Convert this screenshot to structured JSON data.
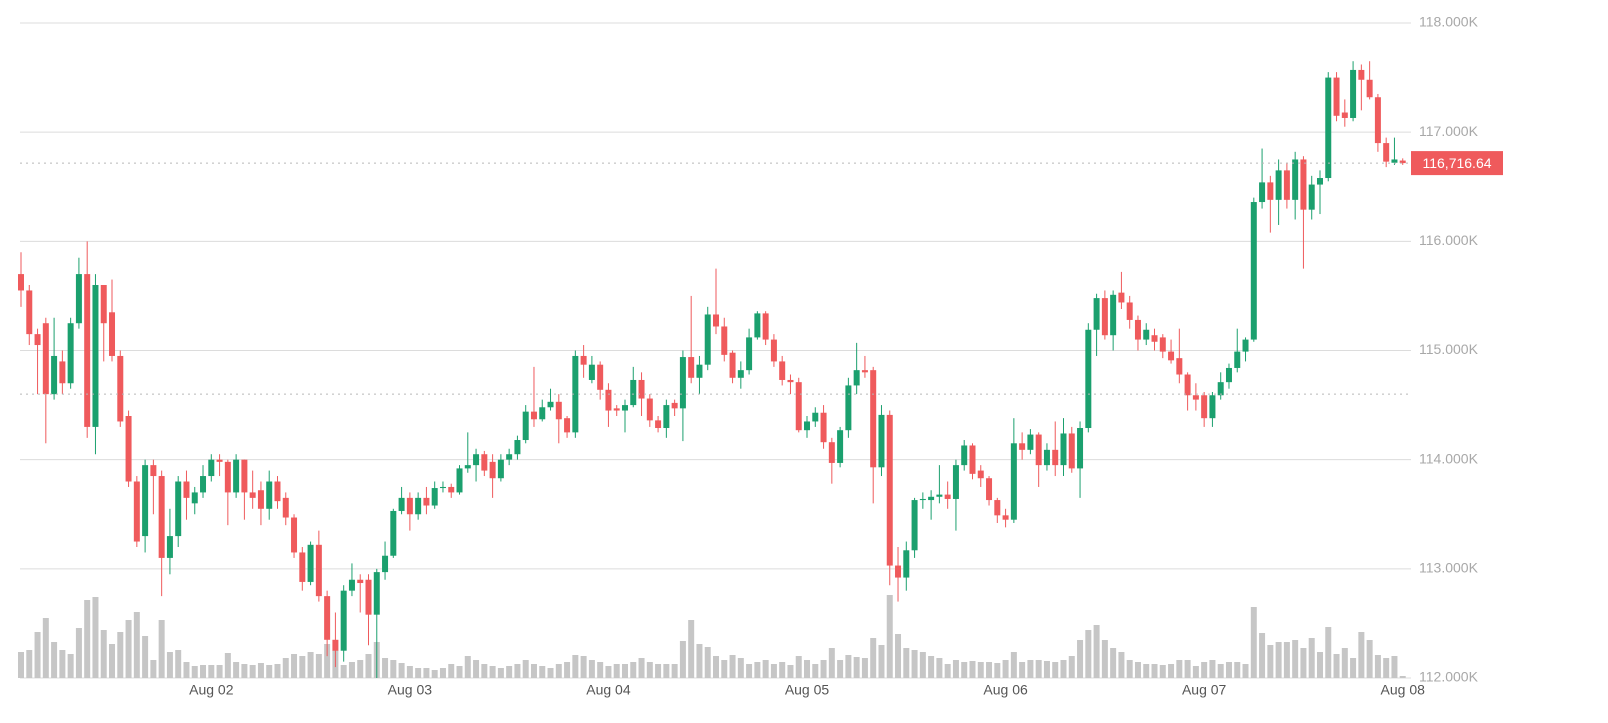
{
  "chart_data": {
    "type": "candlestick",
    "xlim": [
      0,
      168
    ],
    "xticks": [
      {
        "value": 23,
        "label": "Aug 02"
      },
      {
        "value": 47,
        "label": "Aug 03"
      },
      {
        "value": 71,
        "label": "Aug 04"
      },
      {
        "value": 95,
        "label": "Aug 05"
      },
      {
        "value": 119,
        "label": "Aug 06"
      },
      {
        "value": 143,
        "label": "Aug 07"
      },
      {
        "value": 167,
        "label": "Aug 08"
      }
    ],
    "ylim": [
      112000,
      118000
    ],
    "yticks": [
      {
        "value": 112000,
        "label": "112.000K"
      },
      {
        "value": 113000,
        "label": "113.000K"
      },
      {
        "value": 114000,
        "label": "114.000K"
      },
      {
        "value": 115000,
        "label": "115.000K"
      },
      {
        "value": 116000,
        "label": "116.000K"
      },
      {
        "value": 117000,
        "label": "117.000K"
      },
      {
        "value": 118000,
        "label": "118.000K"
      }
    ],
    "grid": true,
    "up_color": "#1ba06e",
    "down_color": "#ef5a5c",
    "volume_color": "#c6c6c6",
    "last_price": {
      "value": 116716.64,
      "label": "116,716.64"
    },
    "reference_line": 114600,
    "candles": {
      "open": [
        115700,
        115550,
        115150,
        115250,
        114600,
        114900,
        114700,
        115250,
        115700,
        114300,
        115600,
        115350,
        114950,
        114400,
        113800,
        113300,
        113950,
        113850,
        113100,
        113300,
        113800,
        113600,
        113700,
        113850,
        114000,
        113980,
        113700,
        114000,
        113700,
        113720,
        113550,
        113800,
        113650,
        113470,
        113150,
        112880,
        113220,
        112750,
        112350,
        112250,
        112800,
        112900,
        112900,
        112580,
        112970,
        113120,
        113530,
        113650,
        113500,
        113650,
        113580,
        113740,
        113750,
        113700,
        113920,
        113950,
        114050,
        113980,
        113830,
        114000,
        114050,
        114180,
        114440,
        114370,
        114480,
        114530,
        114380,
        114250,
        114950,
        114730,
        114870,
        114640,
        114470,
        114450,
        114500,
        114730,
        114560,
        114360,
        114290,
        114520,
        114470,
        114940,
        114750,
        114870,
        115330,
        115220,
        114980,
        114750,
        114820,
        115120,
        115340,
        115100,
        114900,
        114730,
        114710,
        114270,
        114350,
        114430,
        114160,
        113970,
        114270,
        114680,
        114820,
        114820,
        113930,
        114410,
        113030,
        112920,
        113170,
        113630,
        113630,
        113660,
        113680,
        113640,
        113950,
        114130,
        113900,
        113830,
        113630,
        113490,
        113450,
        114150,
        114090,
        114230,
        113950,
        114090,
        113950,
        114240,
        113920,
        114290,
        115190,
        115480,
        115140,
        115530,
        115440,
        115280,
        115100,
        115140,
        115120,
        114990,
        114930,
        114780,
        114590,
        114590,
        114380,
        114590,
        114710,
        114840,
        114990,
        115100,
        116360,
        116540,
        116380,
        116650,
        116380,
        116750,
        116290,
        116520,
        116580,
        117500,
        117180,
        117130,
        117570,
        117480,
        117320,
        116900,
        116720,
        116740
      ],
      "high": [
        115900,
        115600,
        115200,
        115300,
        115300,
        115000,
        115300,
        115850,
        116000,
        115700,
        115600,
        115650,
        115000,
        114450,
        113850,
        114000,
        114000,
        113900,
        113550,
        113850,
        113900,
        113750,
        113950,
        114050,
        114050,
        114000,
        114050,
        114000,
        113900,
        113800,
        113900,
        113850,
        113700,
        113500,
        113200,
        113250,
        113350,
        112800,
        112600,
        112850,
        113050,
        112950,
        112950,
        113000,
        113250,
        113550,
        113750,
        113700,
        113700,
        113750,
        113800,
        113800,
        113780,
        113950,
        114250,
        114100,
        114080,
        114050,
        114050,
        114100,
        114220,
        114500,
        114850,
        114550,
        114650,
        114600,
        114400,
        115000,
        115050,
        114950,
        114900,
        114700,
        114500,
        114550,
        114850,
        114800,
        114600,
        114400,
        114550,
        114550,
        115000,
        115500,
        114950,
        115400,
        115750,
        115300,
        115000,
        114900,
        115200,
        115360,
        115360,
        115150,
        114950,
        114780,
        114750,
        114400,
        114480,
        114500,
        114200,
        114300,
        114750,
        115070,
        114950,
        114850,
        114500,
        114450,
        113200,
        113250,
        113650,
        113700,
        113720,
        113950,
        113800,
        114000,
        114180,
        114150,
        113950,
        113850,
        113650,
        113550,
        114380,
        114250,
        114280,
        114250,
        114150,
        114350,
        114380,
        114300,
        114350,
        115250,
        115520,
        115550,
        115550,
        115720,
        115500,
        115320,
        115250,
        115200,
        115150,
        115100,
        115200,
        114800,
        114700,
        114620,
        114620,
        114800,
        114880,
        115200,
        115120,
        116400,
        116850,
        116600,
        116750,
        116720,
        116820,
        116780,
        116600,
        116650,
        117550,
        117550,
        117300,
        117650,
        117620,
        117650,
        117350,
        116950,
        116950,
        116760
      ],
      "low": [
        115400,
        115050,
        114600,
        114150,
        114550,
        114600,
        114650,
        115200,
        114200,
        114050,
        114900,
        114900,
        114300,
        113750,
        113200,
        113150,
        113500,
        112750,
        112950,
        113200,
        113450,
        113500,
        113650,
        113800,
        113850,
        113400,
        113650,
        113450,
        113550,
        113400,
        113450,
        113550,
        113400,
        113100,
        112800,
        112850,
        112700,
        112200,
        112100,
        112150,
        112750,
        112600,
        112300,
        112000,
        112900,
        113100,
        113500,
        113350,
        113450,
        113500,
        113550,
        113700,
        113650,
        113680,
        113880,
        113800,
        113850,
        113650,
        113800,
        113950,
        114000,
        114150,
        114300,
        114350,
        114450,
        114150,
        114200,
        114200,
        114750,
        114700,
        114550,
        114300,
        114400,
        114250,
        114480,
        114400,
        114300,
        114250,
        114200,
        114400,
        114170,
        114700,
        114600,
        114820,
        115150,
        114900,
        114700,
        114650,
        114780,
        115100,
        115050,
        114850,
        114680,
        114600,
        114250,
        114200,
        114300,
        114100,
        113780,
        113930,
        114200,
        114600,
        114750,
        113600,
        113850,
        112850,
        112700,
        112800,
        113100,
        113550,
        113450,
        113600,
        113550,
        113350,
        113900,
        113820,
        113750,
        113580,
        113420,
        113380,
        113420,
        114000,
        114050,
        113750,
        113900,
        113850,
        113850,
        113880,
        113650,
        114250,
        114950,
        115100,
        115000,
        115380,
        115200,
        115000,
        115050,
        115000,
        114930,
        114880,
        114700,
        114450,
        114450,
        114300,
        114300,
        114550,
        114650,
        114800,
        114900,
        115080,
        116300,
        116080,
        116150,
        116300,
        116200,
        115750,
        116200,
        116250,
        116550,
        117100,
        117050,
        117100,
        117200,
        117300,
        116820,
        116680,
        116700,
        116700
      ],
      "close": [
        115550,
        115150,
        115050,
        114600,
        114950,
        114700,
        115250,
        115700,
        114300,
        115600,
        115250,
        114950,
        114350,
        113800,
        113250,
        113950,
        113850,
        113100,
        113300,
        113800,
        113650,
        113700,
        113850,
        114000,
        113980,
        113700,
        114000,
        113700,
        113650,
        113550,
        113800,
        113620,
        113470,
        113150,
        112880,
        113220,
        112750,
        112350,
        112250,
        112800,
        112900,
        112870,
        112580,
        112970,
        113120,
        113530,
        113650,
        113500,
        113650,
        113580,
        113740,
        113750,
        113700,
        113920,
        113950,
        114050,
        113900,
        113830,
        114000,
        114050,
        114180,
        114440,
        114370,
        114480,
        114530,
        114370,
        114250,
        114950,
        114870,
        114870,
        114640,
        114450,
        114450,
        114500,
        114730,
        114560,
        114360,
        114290,
        114500,
        114470,
        114940,
        114750,
        114870,
        115330,
        115220,
        114960,
        114750,
        114820,
        115120,
        115340,
        115100,
        114900,
        114730,
        114710,
        114270,
        114350,
        114430,
        114160,
        113970,
        114270,
        114680,
        114820,
        114800,
        113930,
        114410,
        113030,
        112920,
        113170,
        113630,
        113640,
        113660,
        113680,
        113640,
        113950,
        114130,
        113870,
        113830,
        113630,
        113490,
        113450,
        114150,
        114090,
        114230,
        113950,
        114090,
        113950,
        114240,
        113920,
        114290,
        115190,
        115480,
        115140,
        115510,
        115440,
        115280,
        115100,
        115190,
        115080,
        114990,
        114910,
        114780,
        114590,
        114550,
        114380,
        114590,
        114710,
        114840,
        114990,
        115100,
        116360,
        116540,
        116380,
        116650,
        116380,
        116750,
        116290,
        116520,
        116580,
        117500,
        117150,
        117130,
        117570,
        117480,
        117320,
        116900,
        116730,
        116750,
        116716.64
      ],
      "volume": [
        26,
        28,
        46,
        60,
        36,
        28,
        24,
        50,
        78,
        81,
        48,
        34,
        46,
        58,
        66,
        42,
        18,
        58,
        26,
        28,
        16,
        12,
        13,
        13,
        13,
        25,
        16,
        14,
        13,
        15,
        13,
        14,
        20,
        24,
        22,
        26,
        24,
        34,
        28,
        13,
        16,
        18,
        24,
        36,
        20,
        18,
        15,
        12,
        10,
        10,
        8,
        10,
        14,
        12,
        22,
        18,
        14,
        12,
        10,
        12,
        14,
        18,
        14,
        12,
        10,
        14,
        16,
        23,
        22,
        18,
        16,
        12,
        14,
        14,
        16,
        20,
        16,
        14,
        14,
        14,
        37,
        58,
        34,
        31,
        22,
        18,
        23,
        20,
        14,
        16,
        18,
        14,
        16,
        13,
        22,
        18,
        14,
        18,
        30,
        18,
        23,
        21,
        20,
        40,
        33,
        83,
        44,
        30,
        28,
        26,
        22,
        20,
        14,
        18,
        16,
        17,
        16,
        16,
        15,
        18,
        26,
        16,
        18,
        18,
        17,
        16,
        18,
        22,
        38,
        48,
        53,
        38,
        30,
        26,
        18,
        16,
        14,
        14,
        13,
        14,
        18,
        18,
        12,
        16,
        18,
        14,
        16,
        16,
        14,
        71,
        45,
        33,
        36,
        36,
        38,
        30,
        40,
        26,
        51,
        24,
        30,
        20,
        46,
        38,
        23,
        20,
        22,
        2
      ]
    }
  }
}
